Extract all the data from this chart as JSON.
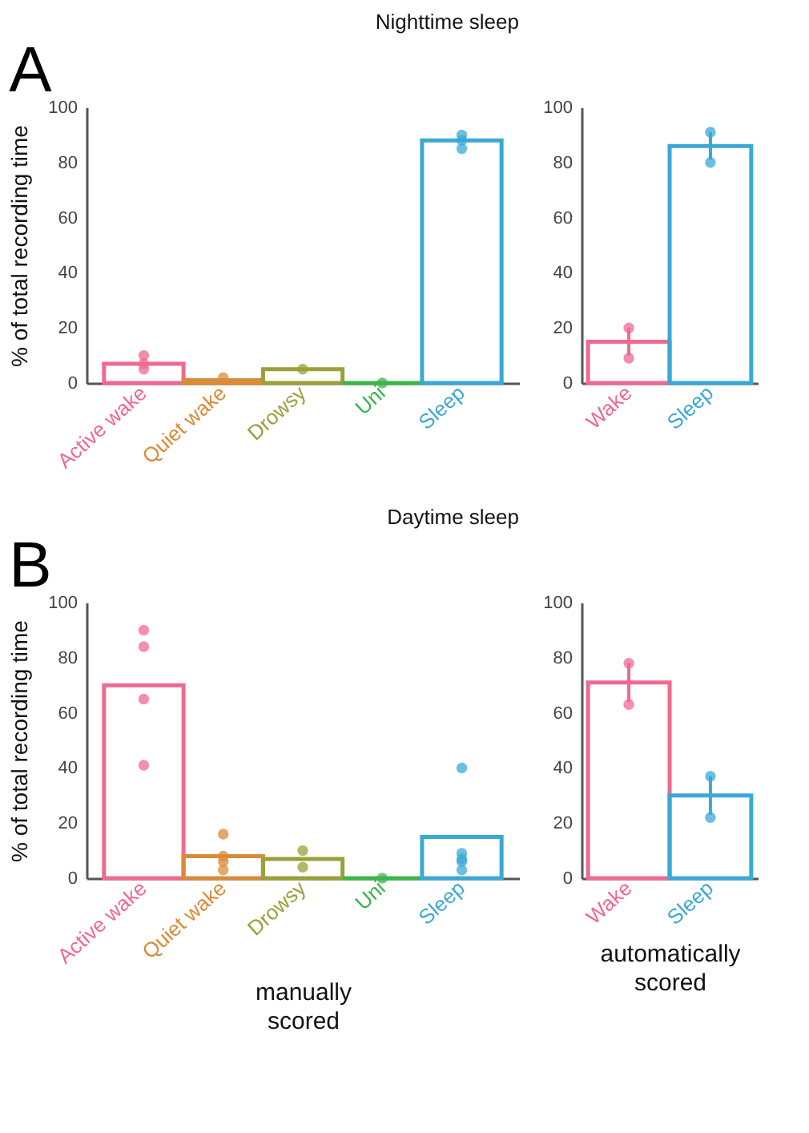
{
  "chart_data": [
    {
      "type": "bar",
      "title": "Nighttime sleep",
      "ylabel": "% of total recording time",
      "annotations": [
        "A"
      ],
      "categories": [
        "Active wake",
        "Quiet wake",
        "Drowsy",
        "Uni",
        "Sleep"
      ],
      "ylim": [
        0,
        100
      ],
      "yticks": [
        0,
        20,
        40,
        60,
        80,
        100
      ],
      "series": [
        {
          "colors": [
            "#f0698f",
            "#d98b3a",
            "#9aa03a",
            "#3cb54a",
            "#3aa9d4"
          ],
          "values": [
            7,
            1,
            5,
            0,
            88
          ]
        },
        {
          "type": "scatter",
          "marker": "circle",
          "x": [
            "Active wake",
            "Active wake",
            "Active wake",
            "Quiet wake",
            "Drowsy",
            "Uni",
            "Sleep",
            "Sleep",
            "Sleep"
          ],
          "values": [
            10,
            7,
            5,
            2,
            5,
            0,
            90,
            88,
            85
          ],
          "colors": [
            "#f0698f",
            "#f0698f",
            "#f0698f",
            "#d98b3a",
            "#9aa03a",
            "#3cb54a",
            "#3aa9d4",
            "#3aa9d4",
            "#3aa9d4"
          ]
        }
      ]
    },
    {
      "type": "bar",
      "categories": [
        "Wake",
        "Sleep"
      ],
      "ylim": [
        0,
        100
      ],
      "yticks": [
        0,
        20,
        40,
        60,
        80,
        100
      ],
      "series": [
        {
          "colors": [
            "#f0698f",
            "#3aa9d4"
          ],
          "values": [
            15,
            86
          ],
          "errors": [
            [
              10,
              20
            ],
            [
              81,
              91
            ]
          ]
        },
        {
          "type": "scatter",
          "marker": "circle",
          "x": [
            "Wake",
            "Wake",
            "Sleep",
            "Sleep"
          ],
          "values": [
            20,
            9,
            91,
            80
          ],
          "colors": [
            "#f0698f",
            "#f0698f",
            "#3aa9d4",
            "#3aa9d4"
          ]
        }
      ]
    },
    {
      "type": "bar",
      "title": "Daytime sleep",
      "ylabel": "% of total recording time",
      "xlabel": "manually scored",
      "annotations": [
        "B"
      ],
      "categories": [
        "Active wake",
        "Quiet wake",
        "Drowsy",
        "Uni",
        "Sleep"
      ],
      "ylim": [
        0,
        100
      ],
      "yticks": [
        0,
        20,
        40,
        60,
        80,
        100
      ],
      "series": [
        {
          "colors": [
            "#f0698f",
            "#d98b3a",
            "#9aa03a",
            "#3cb54a",
            "#3aa9d4"
          ],
          "values": [
            70,
            8,
            7,
            0,
            15
          ]
        },
        {
          "type": "scatter",
          "marker": "circle",
          "x": [
            "Active wake",
            "Active wake",
            "Active wake",
            "Active wake",
            "Quiet wake",
            "Quiet wake",
            "Quiet wake",
            "Quiet wake",
            "Drowsy",
            "Drowsy",
            "Uni",
            "Sleep",
            "Sleep",
            "Sleep",
            "Sleep",
            "Sleep"
          ],
          "values": [
            90,
            84,
            65,
            41,
            16,
            8,
            6,
            3,
            10,
            4,
            0,
            40,
            9,
            7,
            6,
            3
          ],
          "colors": [
            "#f0698f",
            "#f0698f",
            "#f0698f",
            "#f0698f",
            "#d98b3a",
            "#d98b3a",
            "#d98b3a",
            "#d98b3a",
            "#9aa03a",
            "#9aa03a",
            "#3cb54a",
            "#3aa9d4",
            "#3aa9d4",
            "#3aa9d4",
            "#3aa9d4",
            "#3aa9d4"
          ]
        }
      ]
    },
    {
      "type": "bar",
      "xlabel": "automatically scored",
      "categories": [
        "Wake",
        "Sleep"
      ],
      "ylim": [
        0,
        100
      ],
      "yticks": [
        0,
        20,
        40,
        60,
        80,
        100
      ],
      "series": [
        {
          "colors": [
            "#f0698f",
            "#3aa9d4"
          ],
          "values": [
            71,
            30
          ],
          "errors": [
            [
              64,
              78
            ],
            [
              23,
              37
            ]
          ]
        },
        {
          "type": "scatter",
          "marker": "circle",
          "x": [
            "Wake",
            "Wake",
            "Sleep",
            "Sleep"
          ],
          "values": [
            78,
            63,
            37,
            22
          ],
          "colors": [
            "#f0698f",
            "#f0698f",
            "#3aa9d4",
            "#3aa9d4"
          ]
        }
      ]
    }
  ]
}
